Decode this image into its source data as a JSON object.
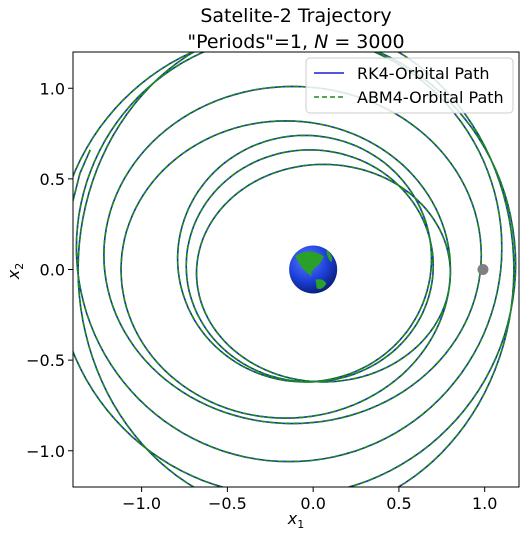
{
  "chart_data": {
    "type": "line",
    "title_line1": "Satelite-2 Trajectory",
    "title_line2_prefix": "\"Periods\"=1, ",
    "title_line2_var": "N",
    "title_line2_suffix": " = 3000",
    "xlabel": "x",
    "xlabel_sub": "1",
    "ylabel": "x",
    "ylabel_sub": "2",
    "xlim": [
      -1.4,
      1.2
    ],
    "ylim": [
      -1.2,
      1.2
    ],
    "xticks": [
      -1.0,
      -0.5,
      0.0,
      0.5,
      1.0
    ],
    "xtick_labels": [
      "−1.0",
      "−0.5",
      "0.0",
      "0.5",
      "1.0"
    ],
    "yticks": [
      -1.0,
      -0.5,
      0.0,
      0.5,
      1.0
    ],
    "ytick_labels": [
      "−1.0",
      "−0.5",
      "0.0",
      "0.5",
      "1.0"
    ],
    "grid": false,
    "legend_position": "top-right",
    "series": [
      {
        "name": "RK4-Orbital Path",
        "color": "#1f1fd0",
        "style": "solid"
      },
      {
        "name": "ABM4-Orbital Path",
        "color": "#1a8a1a",
        "style": "dashed"
      }
    ],
    "trajectory_loops": [
      {
        "cx": -0.05,
        "cy": 0.06,
        "rx": 0.74,
        "ry": 0.68
      },
      {
        "cx": -0.02,
        "cy": 0.02,
        "rx": 0.72,
        "ry": 0.64
      },
      {
        "cx": 0.06,
        "cy": -0.02,
        "rx": 0.74,
        "ry": 0.6
      },
      {
        "cx": -0.16,
        "cy": 0.0,
        "rx": 0.96,
        "ry": 0.82
      },
      {
        "cx": -0.12,
        "cy": 0.08,
        "rx": 1.1,
        "ry": 0.93
      },
      {
        "cx": -0.14,
        "cy": 0.12,
        "rx": 1.24,
        "ry": 1.18
      },
      {
        "cx": -0.16,
        "cy": 0.03,
        "rx": 1.34,
        "ry": 1.28
      },
      {
        "cx": -0.1,
        "cy": 0.0,
        "rx": 1.27,
        "ry": 1.36
      }
    ],
    "trajectory_tail": [
      [
        -1.3,
        0.66
      ],
      [
        -1.36,
        0.53
      ],
      [
        -1.4,
        0.38
      ]
    ],
    "earth": {
      "x": 0.0,
      "y": 0.0,
      "radius": 0.14
    },
    "moon": {
      "x": 0.99,
      "y": 0.0,
      "radius": 0.032,
      "color": "#808080"
    },
    "earth_colors": {
      "ocean": "#1c3fd8",
      "land": "#2aa02a"
    }
  }
}
